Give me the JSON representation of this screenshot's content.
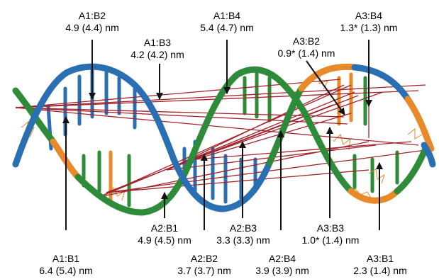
{
  "labels": [
    {
      "id": "A1B2",
      "name": "A1:B2",
      "dist": "4.9 (4.4) nm"
    },
    {
      "id": "A1B3",
      "name": "A1:B3",
      "dist": "4.2 (4.2) nm"
    },
    {
      "id": "A1B4",
      "name": "A1:B4",
      "dist": "5.4 (4.7) nm"
    },
    {
      "id": "A3B2",
      "name": "A3:B2",
      "dist": "0.9* (1.4) nm"
    },
    {
      "id": "A3B4",
      "name": "A3:B4",
      "dist": "1.3* (1.3) nm"
    },
    {
      "id": "A1B1",
      "name": "A1:B1",
      "dist": "6.4 (5.4) nm"
    },
    {
      "id": "A2B1",
      "name": "A2:B1",
      "dist": "4.9 (4.5) nm"
    },
    {
      "id": "A2B2",
      "name": "A2:B2",
      "dist": "3.7 (3.7) nm"
    },
    {
      "id": "A2B3",
      "name": "A2:B3",
      "dist": "3.3 (3.3) nm"
    },
    {
      "id": "A2B4",
      "name": "A2:B4",
      "dist": "3.9 (3.9) nm"
    },
    {
      "id": "A3B3",
      "name": "A3:B3",
      "dist": "1.0* (1.4) nm"
    },
    {
      "id": "A3B1",
      "name": "A3:B1",
      "dist": "2.3 (1.4) nm"
    }
  ],
  "colors": {
    "strand_green": "#2e8b3a",
    "strand_blue": "#2b6fb3",
    "strand_orange": "#e8892a",
    "distance_line": "#a3232b",
    "arrow": "#111111"
  }
}
